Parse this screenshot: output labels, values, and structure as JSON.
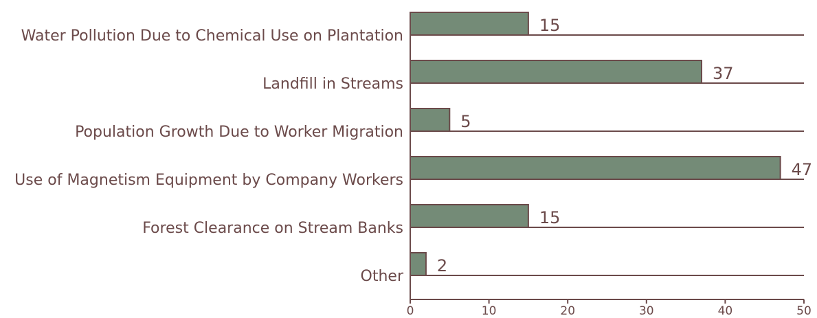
{
  "chart_data": {
    "type": "bar",
    "categories": [
      "Water Pollution Due to Chemical Use on Plantation",
      "Landfill in Streams",
      "Population Growth Due to Worker Migration",
      "Use of Magnetism Equipment by Company Workers",
      "Forest Clearance on Stream Banks",
      "Other"
    ],
    "values": [
      15,
      37,
      5,
      47,
      15,
      2
    ],
    "color": "#748b77",
    "xlim": [
      0,
      50
    ],
    "xticks": [
      0,
      10,
      20,
      30,
      40,
      50
    ]
  }
}
